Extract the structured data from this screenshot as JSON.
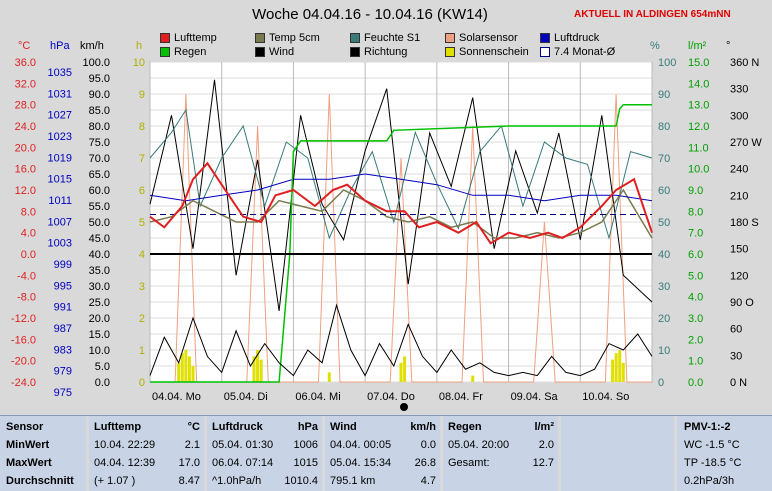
{
  "title": "Woche 04.04.16 - 10.04.16 (KW14)",
  "live_label": "AKTUELL IN ALDINGEN 654mNN",
  "axis_units": {
    "temp": "°C",
    "press": "hPa",
    "wind": "km/h",
    "hours": "h",
    "humidity": "%",
    "rain": "l/m²",
    "dir": "°"
  },
  "legend": [
    {
      "label": "Lufttemp",
      "color": "#e02020"
    },
    {
      "label": "Temp 5cm",
      "color": "#7a7a50"
    },
    {
      "label": "Feuchte S1",
      "color": "#3a7a7a"
    },
    {
      "label": "Solarsensor",
      "color": "#f0a080"
    },
    {
      "label": "Luftdruck",
      "color": "#0000c0"
    },
    {
      "label": "Regen",
      "color": "#00c000"
    },
    {
      "label": "Wind",
      "color": "#000000"
    },
    {
      "label": "Richtung",
      "color": "#000000"
    },
    {
      "label": "Sonnenschein",
      "color": "#e0e000"
    },
    {
      "label": "7.4 Monat-Ø",
      "color": "#ffffff"
    }
  ],
  "chart_data": {
    "type": "line",
    "x_labels": [
      "04.04. Mo",
      "05.04. Di",
      "06.04. Mi",
      "07.04. Do",
      "08.04. Fr",
      "09.04. Sa",
      "10.04. So"
    ],
    "temp_axis": {
      "min": -24,
      "max": 36,
      "ticks": [
        "36.0",
        "32.0",
        "28.0",
        "24.0",
        "20.0",
        "16.0",
        "12.0",
        "8.0",
        "4.0",
        "0.0",
        "-4.0",
        "-8.0",
        "-12.0",
        "-16.0",
        "-20.0",
        "-24.0"
      ]
    },
    "pressure_axis": {
      "ticks": [
        "1035",
        "1031",
        "1027",
        "1023",
        "1019",
        "1015",
        "1011",
        "1007",
        "1003",
        "999",
        "995",
        "991",
        "987",
        "983",
        "979",
        "975"
      ]
    },
    "wind_axis": {
      "min": 0,
      "max": 100,
      "ticks": [
        "100.0",
        "95.0",
        "90.0",
        "85.0",
        "80.0",
        "75.0",
        "70.0",
        "65.0",
        "60.0",
        "55.0",
        "50.0",
        "45.0",
        "40.0",
        "35.0",
        "30.0",
        "25.0",
        "20.0",
        "15.0",
        "10.0",
        "5.0",
        "0.0"
      ]
    },
    "hours_axis": {
      "min": 0,
      "max": 10,
      "ticks": [
        "10",
        "9",
        "8",
        "7",
        "6",
        "5",
        "4",
        "3",
        "2",
        "1",
        "0"
      ]
    },
    "humidity_axis": {
      "min": 0,
      "max": 100,
      "ticks": [
        "100",
        "90",
        "80",
        "70",
        "60",
        "50",
        "40",
        "30",
        "20",
        "10",
        "0"
      ]
    },
    "rain_axis": {
      "min": 0,
      "max": 15,
      "ticks": [
        "15.0",
        "14.0",
        "13.0",
        "12.0",
        "11.0",
        "10.0",
        "9.0",
        "8.0",
        "7.0",
        "6.0",
        "5.0",
        "4.0",
        "3.0",
        "2.0",
        "1.0",
        "0.0"
      ]
    },
    "direction_axis": {
      "ticks": [
        "360 N",
        "330",
        "300",
        "270 W",
        "240",
        "210",
        "180 S",
        "150",
        "120",
        "90 O",
        "60",
        "30",
        "0 N"
      ]
    },
    "series": [
      {
        "name": "Lufttemp",
        "unit": "°C",
        "x": [
          0,
          0.2,
          0.45,
          0.6,
          0.8,
          1.0,
          1.3,
          1.55,
          1.75,
          2.0,
          2.3,
          2.55,
          2.75,
          3.0,
          3.3,
          3.55,
          3.75,
          4.0,
          4.3,
          4.55,
          4.75,
          5.0,
          5.3,
          5.55,
          5.75,
          6.0,
          6.3,
          6.5,
          6.75,
          7.0
        ],
        "y": [
          7,
          5,
          9,
          14,
          17,
          13,
          7,
          6,
          11,
          12,
          9,
          12,
          13,
          10,
          8,
          8,
          5,
          6,
          4,
          6,
          2,
          4,
          3,
          4,
          3,
          5,
          9,
          12,
          14,
          4
        ]
      },
      {
        "name": "Temp 5cm",
        "unit": "°C",
        "x": [
          0,
          0.3,
          0.6,
          0.9,
          1.2,
          1.5,
          1.8,
          2.1,
          2.4,
          2.7,
          3.0,
          3.3,
          3.6,
          3.9,
          4.2,
          4.5,
          4.8,
          5.1,
          5.4,
          5.7,
          6.0,
          6.3,
          6.6,
          7.0
        ],
        "y": [
          6,
          7,
          10,
          8,
          6,
          6,
          10,
          9,
          8,
          12,
          10,
          7,
          6,
          7,
          5,
          6,
          3,
          3,
          4,
          3,
          4,
          6,
          12,
          3
        ]
      },
      {
        "name": "Feuchte S1",
        "unit": "%",
        "x": [
          0,
          0.3,
          0.5,
          0.7,
          1.0,
          1.3,
          1.6,
          1.9,
          2.2,
          2.5,
          2.8,
          3.1,
          3.4,
          3.7,
          4.0,
          4.3,
          4.6,
          4.9,
          5.2,
          5.5,
          5.8,
          6.1,
          6.4,
          6.7,
          7.0
        ],
        "y": [
          70,
          78,
          85,
          55,
          70,
          80,
          55,
          75,
          70,
          45,
          60,
          72,
          50,
          78,
          62,
          48,
          72,
          80,
          55,
          75,
          70,
          68,
          45,
          72,
          70
        ]
      },
      {
        "name": "Luftdruck",
        "unit": "hPa",
        "x": [
          0,
          0.5,
          1.0,
          1.5,
          2.0,
          2.5,
          3.0,
          3.5,
          4.0,
          4.5,
          5.0,
          5.5,
          6.0,
          6.5,
          7.0
        ],
        "y": [
          1010,
          1009,
          1010,
          1011,
          1013,
          1013,
          1014,
          1013,
          1012,
          1010,
          1010,
          1009,
          1010,
          1010,
          1009
        ]
      },
      {
        "name": "Regen",
        "unit": "l/m²",
        "x": [
          0,
          1.8,
          1.95,
          2.0,
          2.1,
          3.3,
          3.4,
          5.0,
          6.5,
          6.55,
          6.6,
          7.0
        ],
        "y": [
          0,
          0,
          6,
          10.8,
          11.3,
          11.3,
          11.8,
          12,
          12,
          12.8,
          13,
          13
        ]
      },
      {
        "name": "Wind",
        "unit": "km/h",
        "x": [
          0,
          0.2,
          0.4,
          0.6,
          0.8,
          1.0,
          1.2,
          1.4,
          1.6,
          1.8,
          2.0,
          2.2,
          2.4,
          2.6,
          2.8,
          3.0,
          3.2,
          3.4,
          3.6,
          3.8,
          4.0,
          4.2,
          4.4,
          4.6,
          4.8,
          5.0,
          5.2,
          5.4,
          5.6,
          5.8,
          6.0,
          6.2,
          6.4,
          6.6,
          6.8,
          7.0
        ],
        "y": [
          2,
          14,
          6,
          20,
          8,
          3,
          16,
          5,
          12,
          6,
          2,
          10,
          6,
          24,
          10,
          2,
          12,
          5,
          18,
          8,
          3,
          10,
          4,
          6,
          3,
          2,
          3,
          2,
          8,
          3,
          2,
          4,
          12,
          10,
          15,
          8
        ]
      },
      {
        "name": "Richtung",
        "unit": "°",
        "x": [
          0,
          0.3,
          0.6,
          0.9,
          1.2,
          1.5,
          1.8,
          2.1,
          2.4,
          2.7,
          3.0,
          3.3,
          3.6,
          3.9,
          4.2,
          4.5,
          4.8,
          5.1,
          5.4,
          5.7,
          6.0,
          6.3,
          6.6,
          7.0
        ],
        "y": [
          200,
          300,
          150,
          340,
          120,
          250,
          80,
          300,
          200,
          160,
          260,
          330,
          110,
          280,
          220,
          320,
          150,
          260,
          190,
          280,
          160,
          300,
          120,
          90
        ]
      },
      {
        "name": "Solarsensor",
        "unit": "h",
        "x": [
          0,
          0.35,
          0.5,
          0.65,
          1.0,
          1.35,
          1.5,
          1.65,
          2.0,
          2.35,
          2.5,
          2.65,
          3.0,
          3.35,
          3.5,
          3.65,
          4.0,
          4.35,
          4.5,
          4.65,
          5.0,
          5.35,
          5.5,
          5.65,
          6.0,
          6.35,
          6.5,
          6.65,
          7.0
        ],
        "y": [
          0,
          0,
          9,
          0,
          0,
          0,
          8,
          0,
          0,
          0,
          9,
          0,
          0,
          0,
          7,
          0,
          0,
          0,
          8,
          0,
          0,
          0,
          5,
          0,
          0,
          0,
          9,
          0,
          0
        ]
      },
      {
        "name": "Sonnenschein",
        "unit": "h",
        "x": [
          0.4,
          0.45,
          0.5,
          0.55,
          0.6,
          1.45,
          1.5,
          1.55,
          2.5,
          3.5,
          3.55,
          4.5,
          6.45,
          6.5,
          6.55,
          6.6
        ],
        "y": [
          0.6,
          0.9,
          1.0,
          0.8,
          0.5,
          0.8,
          1.0,
          0.7,
          0.3,
          0.6,
          0.8,
          0.2,
          0.7,
          0.9,
          1.0,
          0.6
        ]
      },
      {
        "name": "7.4 Monat-Ø",
        "unit": "°C",
        "x": [
          0,
          7
        ],
        "y": [
          7.4,
          7.4
        ]
      }
    ]
  },
  "tables": {
    "sensor": {
      "header": "Sensor",
      "rows": [
        "MinWert",
        "MaxWert",
        "Durchschnitt"
      ]
    },
    "lufttemp": {
      "header": "Lufttemp",
      "unit": "°C",
      "rows": [
        [
          "10.04.  22:29",
          "2.1"
        ],
        [
          "04.04.  12:39",
          "17.0"
        ],
        [
          "(+ 1.07 )",
          "8.47"
        ]
      ]
    },
    "luftdruck": {
      "header": "Luftdruck",
      "unit": "hPa",
      "rows": [
        [
          "05.04.  01:30",
          "1006"
        ],
        [
          "06.04.  07:14",
          "1015"
        ],
        [
          "^1.0hPa/h",
          "1010.4"
        ]
      ]
    },
    "wind": {
      "header": "Wind",
      "unit": "km/h",
      "rows": [
        [
          "04.04.  00:05",
          "0.0"
        ],
        [
          "05.04.  15:34",
          "26.8"
        ],
        [
          "795.1 km",
          "4.7"
        ]
      ]
    },
    "regen": {
      "header": "Regen",
      "unit": "l/m²",
      "rows": [
        [
          "",
          ""
        ],
        [
          "05.04.  20:00",
          "2.0"
        ],
        [
          "Gesamt:",
          "12.7"
        ]
      ]
    },
    "pmv": {
      "header": "PMV-1:-2",
      "rows": [
        "WC -1.5 °C",
        "TP -18.5 °C",
        "0.2hPa/3h"
      ]
    }
  }
}
